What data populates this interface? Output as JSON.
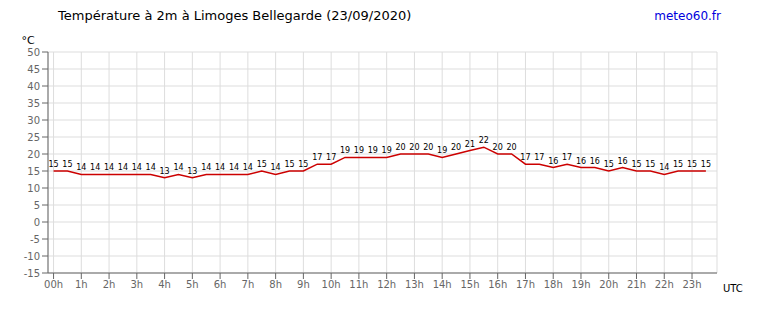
{
  "chart_data": {
    "type": "line",
    "title": "Température à 2m à Limoges Bellegarde (23/09/2020)",
    "ylabel": "°C",
    "xlabel": "UTC",
    "annotations": [
      "meteo60.fr"
    ],
    "x": [
      0,
      0.5,
      1,
      1.5,
      2,
      2.5,
      3,
      3.5,
      4,
      4.5,
      5,
      5.5,
      6,
      6.5,
      7,
      7.5,
      8,
      8.5,
      9,
      9.5,
      10,
      10.5,
      11,
      11.5,
      12,
      12.5,
      13,
      13.5,
      14,
      14.5,
      15,
      15.5,
      16,
      16.5,
      17,
      17.5,
      18,
      18.5,
      19,
      19.5,
      20,
      20.5,
      21,
      21.5,
      22,
      22.5,
      23,
      23.5
    ],
    "values": [
      15,
      15,
      14,
      14,
      14,
      14,
      14,
      14,
      13,
      14,
      13,
      14,
      14,
      14,
      14,
      15,
      14,
      15,
      15,
      17,
      17,
      19,
      19,
      19,
      19,
      20,
      20,
      20,
      19,
      20,
      21,
      22,
      20,
      20,
      17,
      17,
      16,
      17,
      16,
      16,
      15,
      16,
      15,
      15,
      14,
      15,
      15,
      15
    ],
    "color": "#cc0000",
    "xlim": [
      -0.2,
      23.9
    ],
    "xticks": [
      {
        "value": 0,
        "label": "00h"
      },
      {
        "value": 1,
        "label": "1h"
      },
      {
        "value": 2,
        "label": "2h"
      },
      {
        "value": 3,
        "label": "3h"
      },
      {
        "value": 4,
        "label": "4h"
      },
      {
        "value": 5,
        "label": "5h"
      },
      {
        "value": 6,
        "label": "6h"
      },
      {
        "value": 7,
        "label": "7h"
      },
      {
        "value": 8,
        "label": "8h"
      },
      {
        "value": 9,
        "label": "9h"
      },
      {
        "value": 10,
        "label": "10h"
      },
      {
        "value": 11,
        "label": "11h"
      },
      {
        "value": 12,
        "label": "12h"
      },
      {
        "value": 13,
        "label": "13h"
      },
      {
        "value": 14,
        "label": "14h"
      },
      {
        "value": 15,
        "label": "15h"
      },
      {
        "value": 16,
        "label": "16h"
      },
      {
        "value": 17,
        "label": "17h"
      },
      {
        "value": 18,
        "label": "18h"
      },
      {
        "value": 19,
        "label": "19h"
      },
      {
        "value": 20,
        "label": "20h"
      },
      {
        "value": 21,
        "label": "21h"
      },
      {
        "value": 22,
        "label": "22h"
      },
      {
        "value": 23,
        "label": "23h"
      }
    ],
    "ylim": [
      -15,
      50
    ],
    "yticks": [
      -15,
      -10,
      -5,
      0,
      5,
      10,
      15,
      20,
      25,
      30,
      35,
      40,
      45,
      50
    ],
    "grid": true,
    "data_labels": true
  }
}
